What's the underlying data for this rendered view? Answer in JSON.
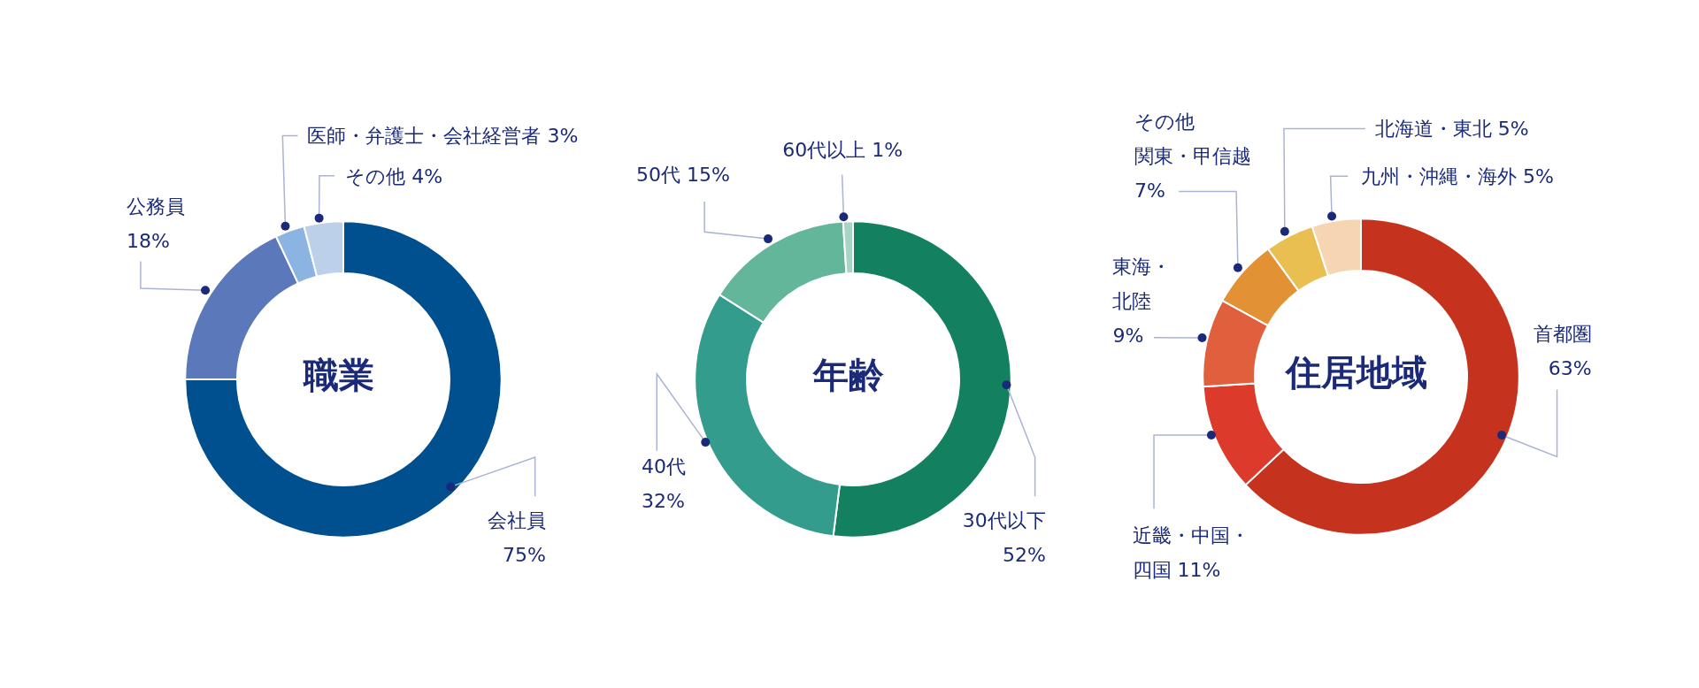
{
  "chart_data": [
    {
      "type": "donut",
      "title": "職業",
      "categories": [
        "会社員",
        "公務員",
        "医師・弁護士・会社経営者",
        "その他"
      ],
      "values": [
        75,
        18,
        3,
        4
      ],
      "value_labels": [
        "75%",
        "18%",
        "3%",
        "4%"
      ],
      "colors": [
        "#004f8f",
        "#5b78bb",
        "#8cb4e2",
        "#bcd0ea"
      ]
    },
    {
      "type": "donut",
      "title": "年齢",
      "categories": [
        "30代以下",
        "40代",
        "50代",
        "60代以上"
      ],
      "values": [
        52,
        32,
        15,
        1
      ],
      "value_labels": [
        "52%",
        "32%",
        "15%",
        "1%"
      ],
      "colors": [
        "#138060",
        "#349c8c",
        "#63b69a",
        "#a8d5c3"
      ]
    },
    {
      "type": "donut",
      "title": "住居地域",
      "categories": [
        "首都圏",
        "近畿・中国・四国",
        "東海・北陸",
        "その他関東・甲信越",
        "北海道・東北",
        "九州・沖縄・海外"
      ],
      "values": [
        63,
        11,
        9,
        7,
        5,
        5
      ],
      "value_labels": [
        "63%",
        "11%",
        "9%",
        "7%",
        "5%",
        "5%"
      ],
      "colors": [
        "#c5331f",
        "#dc3a2a",
        "#e0603e",
        "#e29235",
        "#e8bf50",
        "#f5d5b2"
      ]
    }
  ]
}
